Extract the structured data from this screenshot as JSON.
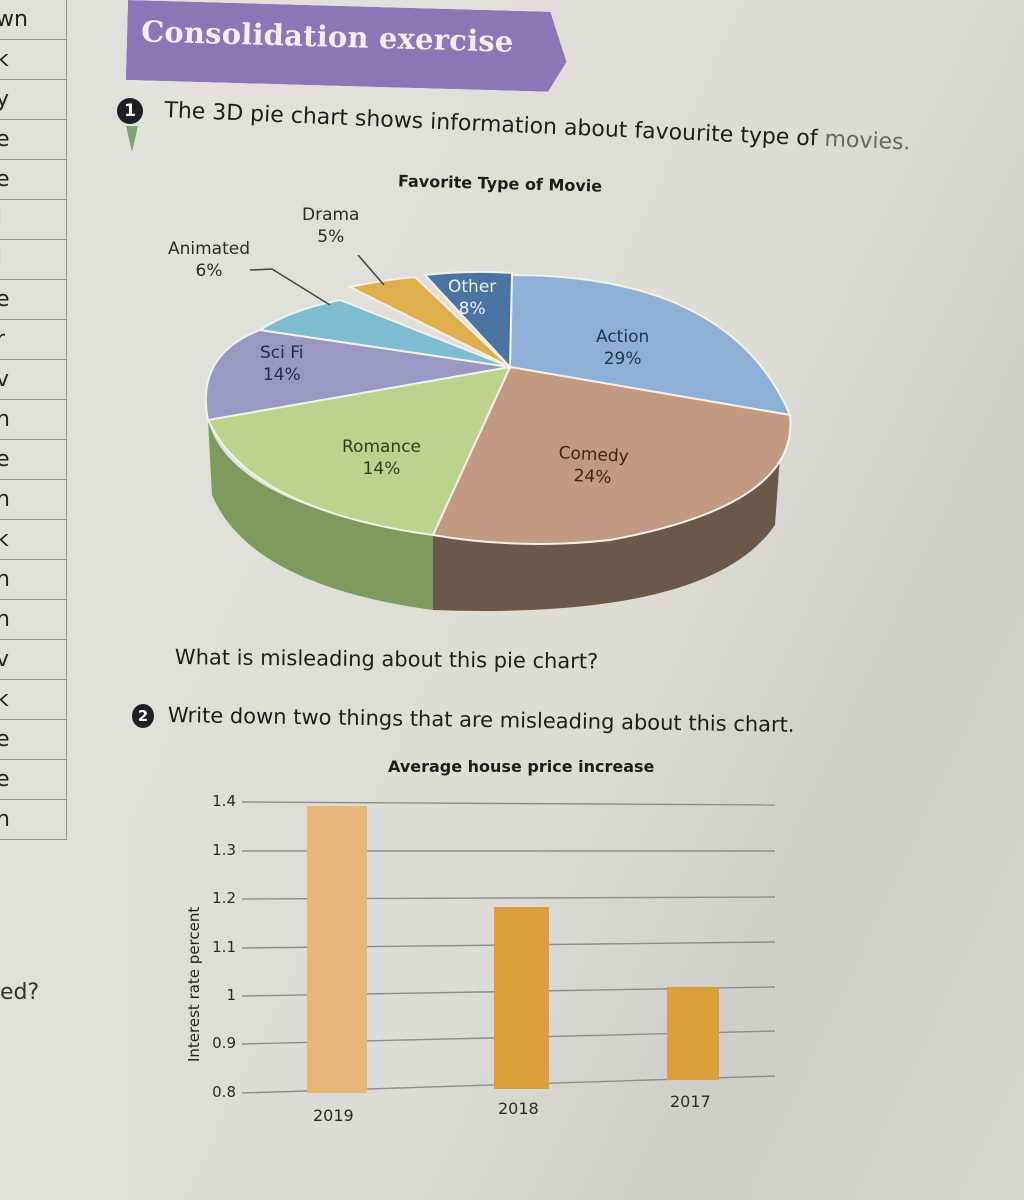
{
  "left_page": {
    "row_fragments": [
      "wn",
      "k",
      "y",
      "e",
      "e",
      "l",
      "l",
      "e",
      "r",
      "v",
      "n",
      "e",
      "n",
      "k",
      "n",
      "n",
      "v",
      "k",
      "e",
      "e",
      "n"
    ],
    "bottom_fragment": "ed?"
  },
  "header": {
    "banner_title": "Consolidation exercise",
    "banner_color": "#8a78b6"
  },
  "question1": {
    "number": "1",
    "text": "The 3D pie chart shows information about favourite type of ",
    "text_end": "movies.",
    "follow_up": "What is misleading about this pie chart?"
  },
  "question2": {
    "number": "2",
    "text": "Write down two things that are misleading about this chart."
  },
  "chart_data": [
    {
      "type": "pie",
      "title": "Favorite Type of Movie",
      "categories": [
        "Action",
        "Comedy",
        "Romance",
        "Sci Fi",
        "Animated",
        "Drama",
        "Other"
      ],
      "values": [
        29,
        24,
        14,
        14,
        6,
        5,
        8
      ],
      "labels": [
        "Action 29%",
        "Comedy 24%",
        "Romance 14%",
        "Sci Fi 14%",
        "Animated 6%",
        "Drama 5%",
        "Other 8%"
      ],
      "colors": {
        "Action": "#8fb0d6",
        "Comedy": "#c29a82",
        "Romance": "#bdd28d",
        "Sci Fi": "#9a97c3",
        "Animated": "#7fbcd1",
        "Drama": "#dcae4c",
        "Other": "#4b74a3"
      },
      "style": "3D exploded perspective",
      "legend": "none (inline labels)"
    },
    {
      "type": "bar",
      "title": "Average house price increase",
      "categories": [
        "2019",
        "2018",
        "2017"
      ],
      "values": [
        1.39,
        1.18,
        1.02
      ],
      "xlabel": "",
      "ylabel": "Interest rate percent",
      "ylim": [
        0.8,
        1.4
      ],
      "yticks": [
        "1.4",
        "1.3",
        "1.2",
        "1.1",
        "1",
        "0.9",
        "0.8"
      ],
      "grid": true,
      "colors": [
        "#e7b779",
        "#dca03b",
        "#dca03b"
      ]
    }
  ],
  "pie_labels": {
    "title": "Favorite Type of Movie",
    "drama_name": "Drama",
    "drama_pct": "5%",
    "animated_name": "Animated",
    "animated_pct": "6%",
    "other_name": "Other",
    "other_pct": "8%",
    "action_name": "Action",
    "action_pct": "29%",
    "scifi_name": "Sci Fi",
    "scifi_pct": "14%",
    "romance_name": "Romance",
    "romance_pct": "14%",
    "comedy_name": "Comedy",
    "comedy_pct": "24%"
  },
  "bar_labels": {
    "title": "Average house price increase",
    "ylabel": "Interest rate percent",
    "yticks": [
      "1.4",
      "1.3",
      "1.2",
      "1.1",
      "1",
      "0.9",
      "0.8"
    ],
    "xticks": [
      "2019",
      "2018",
      "2017"
    ]
  }
}
